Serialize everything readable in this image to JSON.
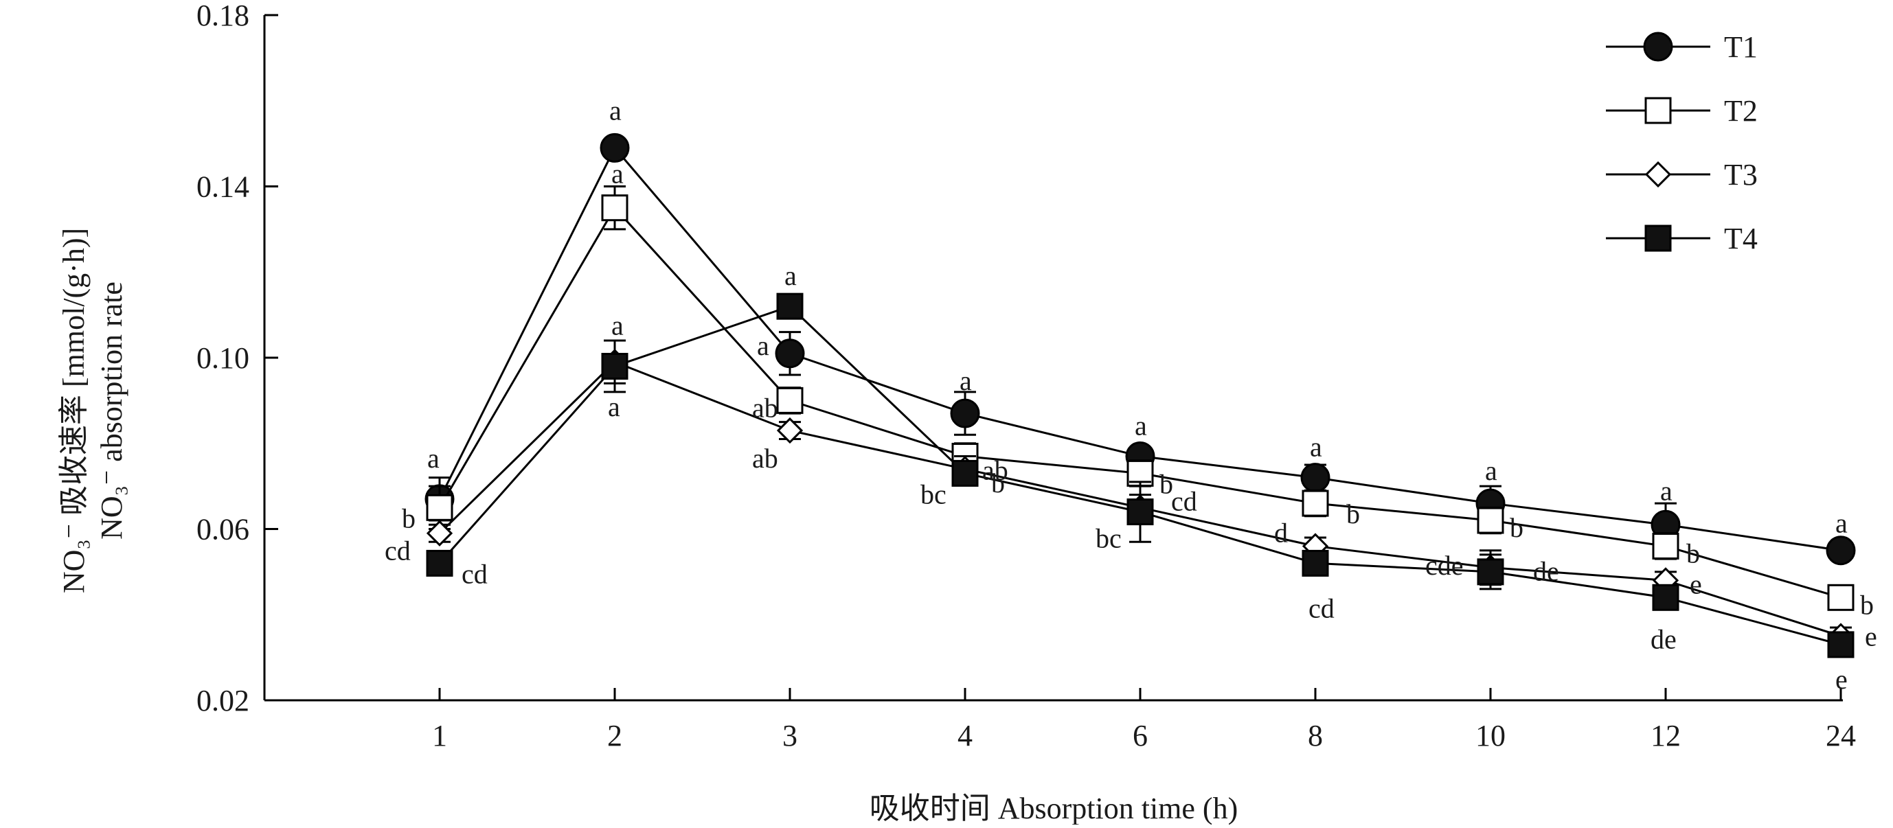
{
  "chart_data": {
    "type": "line",
    "categories": [
      "1",
      "2",
      "3",
      "4",
      "6",
      "8",
      "10",
      "12",
      "24"
    ],
    "xlabel": "吸收时间 Absorption time (h)",
    "ylabel_lines": [
      "NO₃⁻ 吸收速率 [mmol/(g·h)]",
      "NO₃⁻ absorption rate"
    ],
    "ylim": [
      0.02,
      0.18
    ],
    "yticks": [
      "0.02",
      "0.06",
      "0.10",
      "0.14",
      "0.18"
    ],
    "legend_position": "top-right",
    "grid": false,
    "series": [
      {
        "name": "T1",
        "marker": "circle-filled",
        "values": [
          0.067,
          0.149,
          0.101,
          0.087,
          0.077,
          0.072,
          0.066,
          0.061,
          0.055
        ],
        "errors": [
          0.005,
          0.002,
          0.005,
          0.005,
          0.002,
          0.003,
          0.004,
          0.005,
          0.002
        ],
        "labels": [
          "a",
          "a",
          "a",
          "a",
          "a",
          "a",
          "a",
          "a",
          "a"
        ]
      },
      {
        "name": "T2",
        "marker": "square-open",
        "values": [
          0.065,
          0.135,
          0.09,
          0.077,
          0.073,
          0.066,
          0.062,
          0.056,
          0.044
        ],
        "errors": [
          0.005,
          0.005,
          0.003,
          0.003,
          0.003,
          0.003,
          0.003,
          0.003,
          0.002
        ],
        "labels": [
          "b",
          "a",
          "ab",
          "ab",
          "b",
          "b",
          "b",
          "b",
          "b"
        ]
      },
      {
        "name": "T3",
        "marker": "diamond-open",
        "values": [
          0.059,
          0.099,
          0.083,
          0.074,
          0.065,
          0.056,
          0.051,
          0.048,
          0.035
        ],
        "errors": [
          0.002,
          0.005,
          0.002,
          0.003,
          0.003,
          0.002,
          0.004,
          0.002,
          0.002
        ],
        "labels": [
          "cd",
          "a",
          "ab",
          "b",
          "cd",
          "d",
          "de",
          "e",
          "e"
        ]
      },
      {
        "name": "T4",
        "marker": "square-filled",
        "values": [
          0.052,
          0.098,
          0.112,
          0.073,
          0.064,
          0.052,
          0.05,
          0.044,
          0.033
        ],
        "errors": [
          0.002,
          0.006,
          0.002,
          0.002,
          0.007,
          0.002,
          0.004,
          0.002,
          0.002
        ],
        "labels": [
          "cd",
          "a",
          "a",
          "bc",
          "bc",
          "cd",
          "cde",
          "de",
          "e"
        ]
      }
    ]
  }
}
